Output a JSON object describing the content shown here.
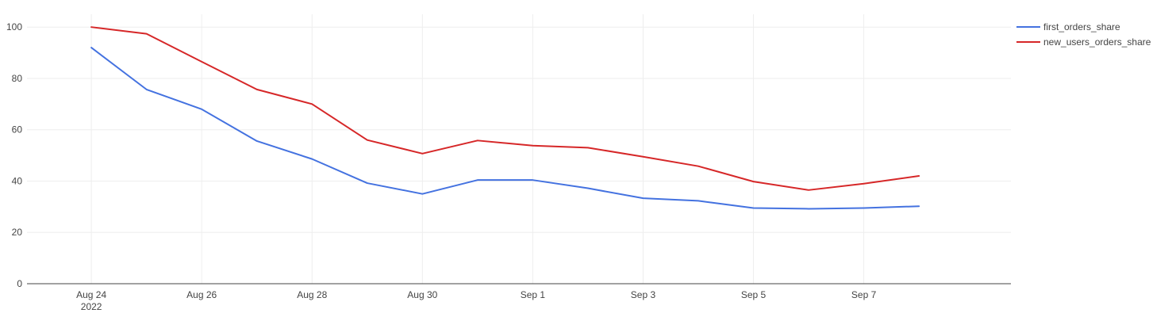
{
  "chart_data": {
    "type": "line",
    "x": [
      "2022-08-24",
      "2022-08-25",
      "2022-08-26",
      "2022-08-27",
      "2022-08-28",
      "2022-08-29",
      "2022-08-30",
      "2022-08-31",
      "2022-09-01",
      "2022-09-02",
      "2022-09-03",
      "2022-09-04",
      "2022-09-05",
      "2022-09-06",
      "2022-09-07",
      "2022-09-08"
    ],
    "series": [
      {
        "name": "first_orders_share",
        "color": "#4472e0",
        "values": [
          92.0,
          75.7,
          68.0,
          55.6,
          48.6,
          39.2,
          35.0,
          40.4,
          40.4,
          37.2,
          33.3,
          32.3,
          29.5,
          29.2,
          29.5,
          30.2
        ]
      },
      {
        "name": "new_users_orders_share",
        "color": "#d62728",
        "values": [
          100.0,
          97.4,
          86.5,
          75.7,
          70.0,
          56.0,
          50.7,
          55.8,
          53.8,
          53.0,
          49.5,
          45.8,
          39.8,
          36.5,
          39.0,
          42.0
        ]
      }
    ],
    "xlabel": "",
    "ylabel": "",
    "ylim": [
      0,
      105
    ],
    "yticks": [
      0,
      20,
      40,
      60,
      80,
      100
    ],
    "xticks": [
      {
        "date": "2022-08-24",
        "label": "Aug 24",
        "sublabel": "2022"
      },
      {
        "date": "2022-08-26",
        "label": "Aug 26"
      },
      {
        "date": "2022-08-28",
        "label": "Aug 28"
      },
      {
        "date": "2022-08-30",
        "label": "Aug 30"
      },
      {
        "date": "2022-09-01",
        "label": "Sep 1"
      },
      {
        "date": "2022-09-03",
        "label": "Sep 3"
      },
      {
        "date": "2022-09-05",
        "label": "Sep 5"
      },
      {
        "date": "2022-09-07",
        "label": "Sep 7"
      }
    ],
    "xlim": [
      "2022-08-22T20:00:00",
      "2022-09-09T16:00:00"
    ],
    "grid": true,
    "legend": "top-right"
  }
}
